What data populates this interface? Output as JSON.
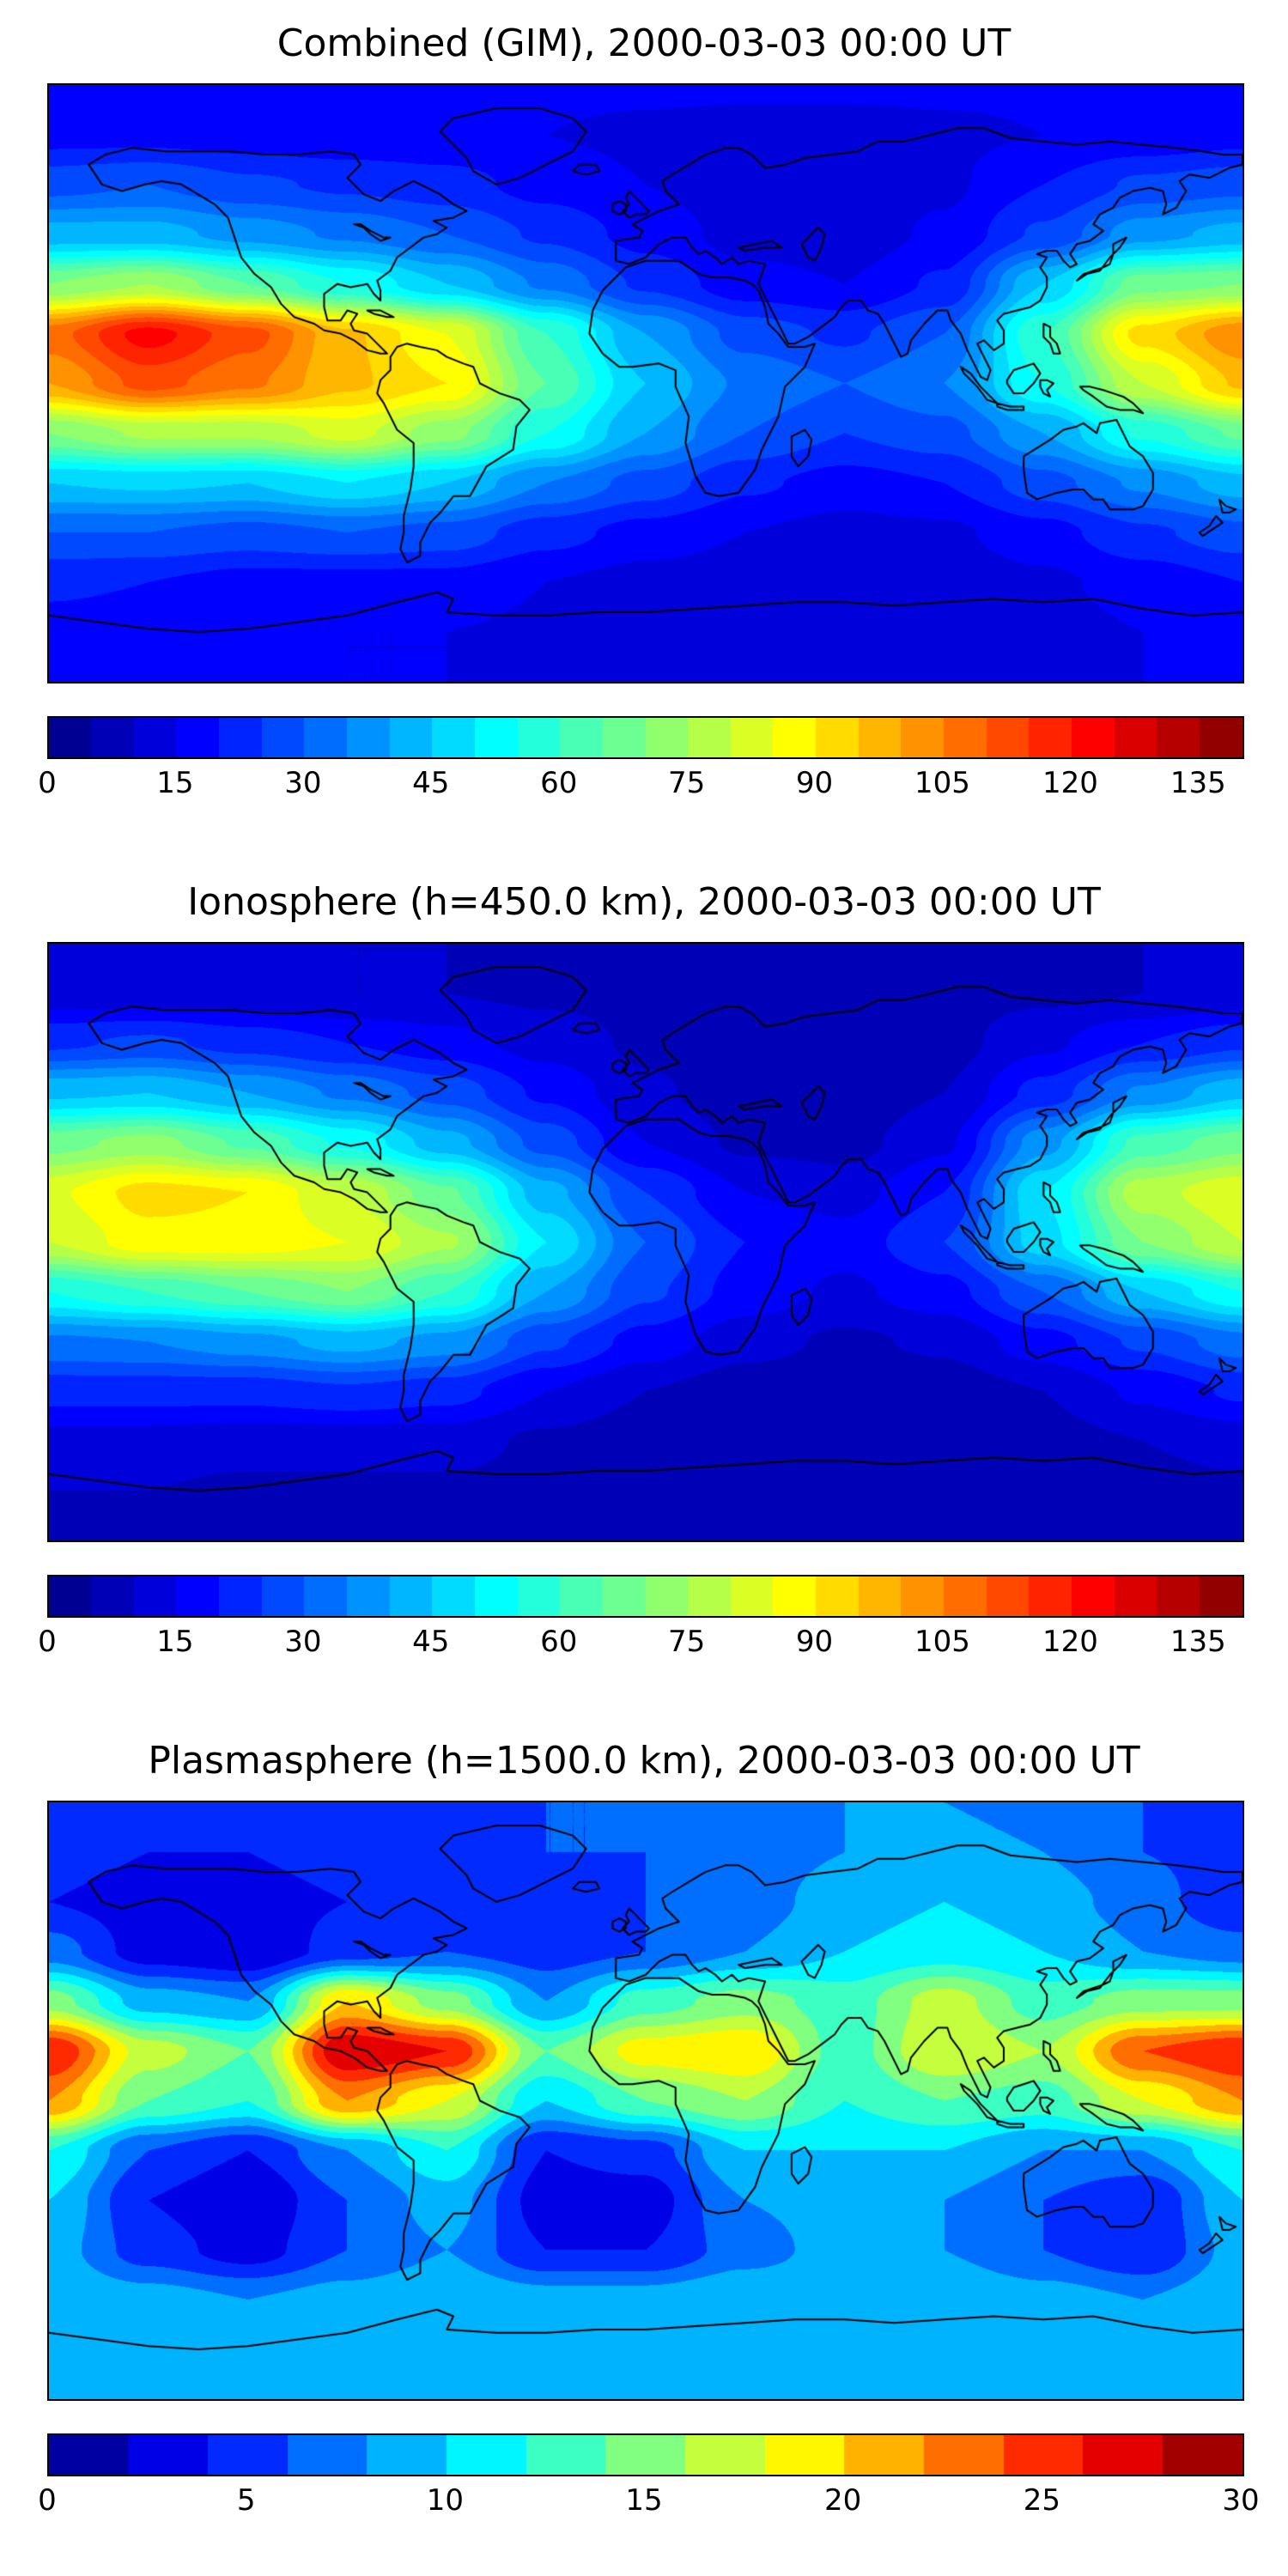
{
  "chart_data": [
    {
      "type": "heatmap",
      "title": "Combined (GIM), 2000-03-03 00:00 UT",
      "colormap": "jet",
      "vmin": 0,
      "vmax": 140,
      "level_step": 5,
      "colorbar_ticks": [
        0,
        15,
        30,
        45,
        60,
        75,
        90,
        105,
        120,
        135
      ],
      "lon_range": [
        -180,
        180
      ],
      "lat_range": [
        -90,
        90
      ],
      "grid_lon_step": 30,
      "grid_lat_step": 15,
      "values": [
        [
          16,
          16,
          16,
          16,
          16,
          16,
          16,
          16,
          16,
          16,
          16,
          16,
          16
        ],
        [
          18,
          18,
          17,
          16,
          16,
          15,
          14,
          13,
          13,
          14,
          15,
          16,
          18
        ],
        [
          28,
          30,
          26,
          24,
          22,
          18,
          15,
          12,
          12,
          14,
          20,
          26,
          28
        ],
        [
          42,
          42,
          38,
          34,
          30,
          24,
          18,
          13,
          12,
          16,
          26,
          38,
          42
        ],
        [
          70,
          75,
          65,
          55,
          45,
          34,
          24,
          17,
          15,
          21,
          45,
          68,
          70
        ],
        [
          108,
          122,
          112,
          96,
          85,
          60,
          40,
          28,
          24,
          30,
          60,
          92,
          104
        ],
        [
          100,
          112,
          106,
          96,
          90,
          65,
          45,
          34,
          30,
          35,
          55,
          80,
          96
        ],
        [
          70,
          76,
          76,
          82,
          72,
          55,
          40,
          30,
          25,
          28,
          40,
          56,
          66
        ],
        [
          45,
          46,
          45,
          50,
          45,
          35,
          28,
          21,
          18,
          20,
          28,
          36,
          43
        ],
        [
          30,
          30,
          28,
          30,
          28,
          22,
          18,
          15,
          13,
          14,
          18,
          24,
          28
        ],
        [
          21,
          20,
          18,
          18,
          18,
          15,
          13,
          12,
          11,
          12,
          14,
          17,
          20
        ],
        [
          18,
          17,
          16,
          15,
          15,
          14,
          13,
          12,
          12,
          12,
          13,
          15,
          17
        ],
        [
          15,
          15,
          15,
          15,
          15,
          15,
          15,
          15,
          15,
          15,
          15,
          15,
          15
        ]
      ]
    },
    {
      "type": "heatmap",
      "title": "Ionosphere  (h=450.0 km), 2000-03-03 00:00 UT",
      "colormap": "jet",
      "vmin": 0,
      "vmax": 140,
      "level_step": 5,
      "colorbar_ticks": [
        0,
        15,
        30,
        45,
        60,
        75,
        90,
        105,
        120,
        135
      ],
      "lon_range": [
        -180,
        180
      ],
      "lat_range": [
        -90,
        90
      ],
      "grid_lon_step": 30,
      "grid_lat_step": 15,
      "values": [
        [
          10,
          10,
          10,
          10,
          10,
          10,
          10,
          10,
          10,
          10,
          10,
          10,
          10
        ],
        [
          12,
          12,
          11,
          10,
          10,
          9,
          8,
          7,
          7,
          8,
          9,
          10,
          12
        ],
        [
          24,
          26,
          23,
          20,
          17,
          13,
          9,
          6,
          6,
          8,
          14,
          20,
          24
        ],
        [
          44,
          45,
          40,
          34,
          28,
          19,
          11,
          7,
          6,
          10,
          22,
          36,
          44
        ],
        [
          68,
          72,
          64,
          54,
          42,
          28,
          15,
          9,
          8,
          14,
          38,
          62,
          68
        ],
        [
          84,
          92,
          90,
          80,
          66,
          42,
          25,
          15,
          13,
          20,
          50,
          78,
          84
        ],
        [
          80,
          88,
          88,
          85,
          76,
          50,
          30,
          20,
          17,
          25,
          48,
          70,
          80
        ],
        [
          55,
          60,
          65,
          70,
          60,
          40,
          26,
          18,
          14,
          18,
          30,
          45,
          55
        ],
        [
          34,
          35,
          38,
          42,
          38,
          26,
          18,
          12,
          9,
          11,
          18,
          26,
          33
        ],
        [
          22,
          22,
          22,
          24,
          22,
          15,
          10,
          7,
          6,
          7,
          10,
          16,
          21
        ],
        [
          13,
          13,
          12,
          12,
          12,
          9,
          7,
          6,
          5,
          6,
          8,
          10,
          12
        ],
        [
          10,
          10,
          9,
          9,
          9,
          8,
          7,
          6,
          6,
          6,
          7,
          8,
          9
        ],
        [
          8,
          8,
          8,
          8,
          8,
          8,
          8,
          8,
          8,
          8,
          8,
          8,
          8
        ]
      ]
    },
    {
      "type": "heatmap",
      "title": "Plasmasphere (h=1500.0 km), 2000-03-03 00:00 UT",
      "colormap": "jet",
      "vmin": 0,
      "vmax": 30,
      "level_step": 2,
      "colorbar_ticks": [
        0,
        5,
        10,
        15,
        20,
        25,
        30
      ],
      "lon_range": [
        -180,
        180
      ],
      "lat_range": [
        -90,
        90
      ],
      "grid_lon_step": 30,
      "grid_lat_step": 15,
      "values": [
        [
          5,
          5,
          5,
          6,
          6,
          6,
          6,
          7,
          8,
          8,
          7,
          6,
          5
        ],
        [
          5,
          4,
          4,
          5,
          5,
          6,
          6,
          7,
          8,
          9,
          8,
          6,
          5
        ],
        [
          4,
          3,
          3,
          4,
          5,
          5,
          6,
          7,
          9,
          10,
          9,
          7,
          4
        ],
        [
          7,
          3,
          2,
          5,
          6,
          5,
          6,
          8,
          10,
          11,
          10,
          8,
          7
        ],
        [
          15,
          9,
          8,
          20,
          15,
          8,
          13,
          15,
          13,
          17,
          13,
          15,
          15
        ],
        [
          26,
          17,
          14,
          28,
          26,
          14,
          19,
          20,
          13,
          18,
          16,
          24,
          26
        ],
        [
          22,
          14,
          12,
          22,
          18,
          10,
          14,
          16,
          12,
          14,
          13,
          18,
          22
        ],
        [
          12,
          6,
          4,
          8,
          12,
          4,
          5,
          10,
          10,
          10,
          8,
          8,
          12
        ],
        [
          10,
          4,
          2,
          6,
          9,
          3,
          3,
          8,
          9,
          8,
          6,
          4,
          10
        ],
        [
          9,
          5,
          3,
          6,
          8,
          4,
          4,
          7,
          9,
          8,
          6,
          4,
          9
        ],
        [
          10,
          9,
          8,
          9,
          10,
          9,
          9,
          10,
          10,
          10,
          9,
          8,
          10
        ],
        [
          8,
          8,
          8,
          8,
          9,
          9,
          9,
          9,
          9,
          9,
          8,
          8,
          8
        ],
        [
          9,
          9,
          8,
          8,
          9,
          10,
          10,
          10,
          10,
          9,
          9,
          9,
          9
        ]
      ]
    }
  ]
}
